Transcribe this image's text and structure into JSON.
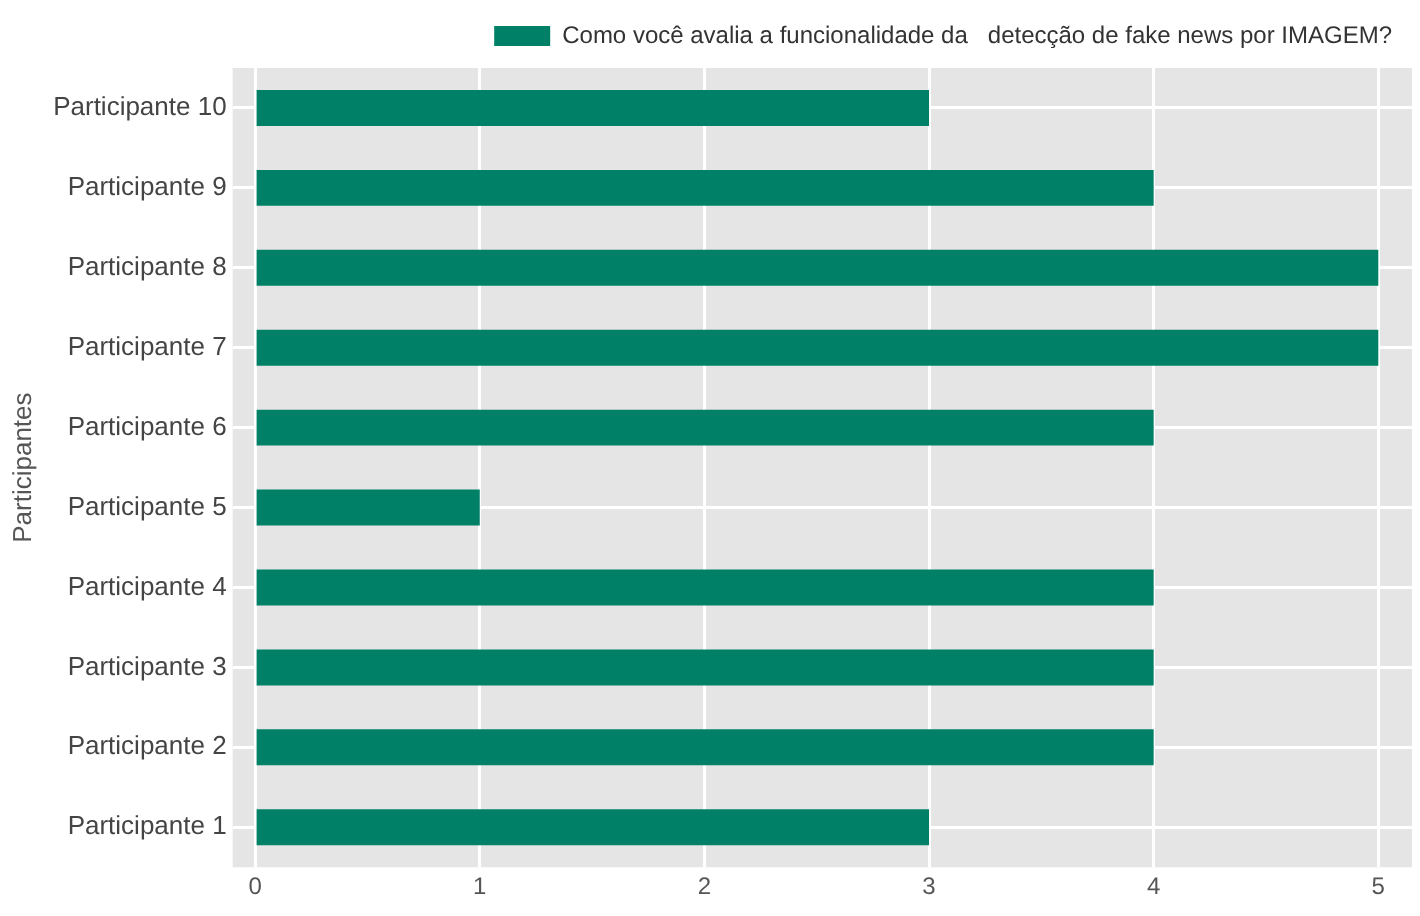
{
  "chart_data": {
    "type": "bar",
    "orientation": "horizontal",
    "ylabel": "Participantes",
    "categories": [
      "Participante 10",
      "Participante 9",
      "Participante 8",
      "Participante 7",
      "Participante 6",
      "Participante 5",
      "Participante 4",
      "Participante 3",
      "Participante 2",
      "Participante 1"
    ],
    "series": [
      {
        "name": "Como você avalia a funcionalidade da   detecção de fake news por IMAGEM?",
        "color": "#008066",
        "values": [
          3,
          4,
          5,
          5,
          4,
          1,
          4,
          4,
          4,
          3
        ]
      }
    ],
    "xlim": [
      -0.1,
      5.15
    ],
    "xticks": [
      0,
      1,
      2,
      3,
      4,
      5
    ],
    "grid": true,
    "legend": "top"
  }
}
